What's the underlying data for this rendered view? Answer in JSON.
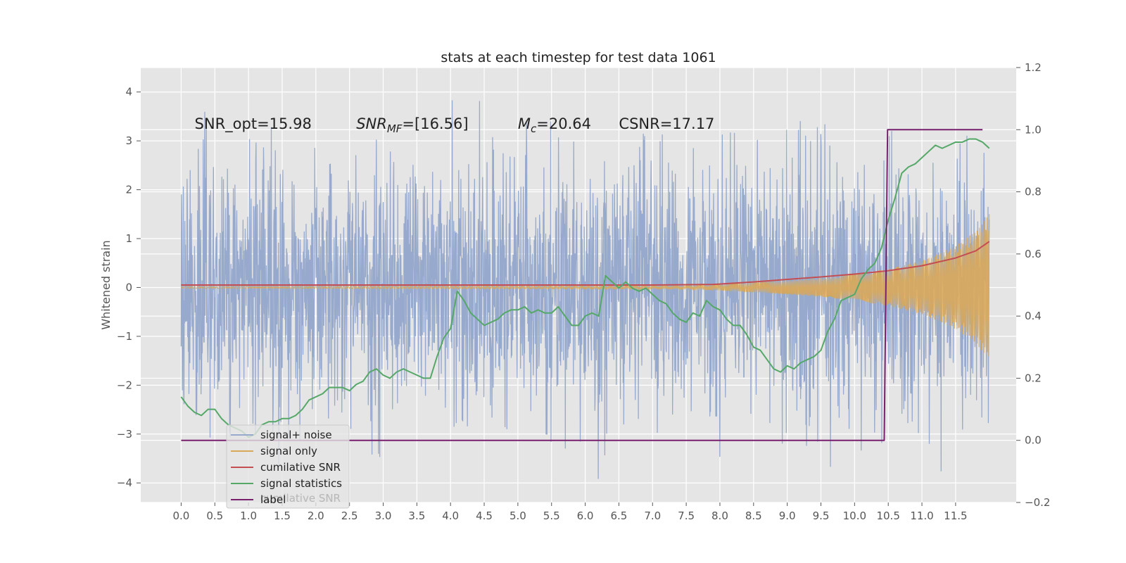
{
  "chart_data": {
    "type": "line",
    "title": "stats at each timestep for test data 1061",
    "xlabel": "",
    "ylabel": "Whitened strain",
    "ylabel_right": "",
    "xlim": [
      -0.6,
      12.4
    ],
    "ylim": [
      -4.4,
      4.5
    ],
    "ylim_right": [
      -0.2,
      1.2
    ],
    "x_ticks": [
      0.0,
      0.5,
      1.0,
      1.5,
      2.0,
      2.5,
      3.0,
      3.5,
      4.0,
      4.5,
      5.0,
      5.5,
      6.0,
      6.5,
      7.0,
      7.5,
      8.0,
      8.5,
      9.0,
      9.5,
      10.0,
      10.5,
      11.0,
      11.5
    ],
    "x_tick_labels": [
      "0.0",
      "0.5",
      "1.0",
      "1.5",
      "2.0",
      "2.5",
      "3.0",
      "3.5",
      "4.0",
      "4.5",
      "5.0",
      "5.5",
      "6.0",
      "6.5",
      "7.0",
      "7.5",
      "8.0",
      "8.5",
      "9.0",
      "9.5",
      "10.0",
      "10.5",
      "11.0",
      "11.5"
    ],
    "y_ticks": [
      -4,
      -3,
      -2,
      -1,
      0,
      1,
      2,
      3,
      4
    ],
    "y_tick_labels": [
      "−4",
      "−3",
      "−2",
      "−1",
      "0",
      "1",
      "2",
      "3",
      "4"
    ],
    "y_right_ticks": [
      -0.2,
      0.0,
      0.2,
      0.4,
      0.6,
      0.8,
      1.0,
      1.2
    ],
    "y_right_tick_labels": [
      "−0.2",
      "0.0",
      "0.2",
      "0.4",
      "0.6",
      "0.8",
      "1.0",
      "1.2"
    ],
    "grid": true,
    "legend_position": "lower-left",
    "annotations": [
      {
        "text": "SNR_opt=15.98",
        "x": 0.2,
        "y": 3.35
      },
      {
        "text": "SNR_MF=[16.56]",
        "main": "SNR",
        "sub": "MF",
        "rest": "=[16.56]",
        "x": 2.6,
        "y": 3.35
      },
      {
        "text": "M_c=20.64",
        "main": "M",
        "sub": "c",
        "rest": "=20.64",
        "x": 5.0,
        "y": 3.35
      },
      {
        "text": "CSNR=17.17",
        "x": 6.5,
        "y": 3.35
      }
    ],
    "legend_under_text": "cumilative SNR",
    "series": [
      {
        "name": "signal+ noise",
        "color": "#97a9cc",
        "axis": "left",
        "description": "noisy whitened strain, approx N(0,1) spread between about -4 and 4 over x from 0 to 12"
      },
      {
        "name": "signal only",
        "color": "#d9a95a",
        "axis": "left",
        "description": "chirp envelope, amplitude near 0 until ~8.0, growing to about 1.5 at x=12",
        "envelope": {
          "x": [
            0,
            7.5,
            8.0,
            8.5,
            9.0,
            9.5,
            10.0,
            10.5,
            11.0,
            11.5,
            11.8,
            12.0
          ],
          "amp": [
            0.02,
            0.03,
            0.06,
            0.1,
            0.14,
            0.19,
            0.27,
            0.38,
            0.55,
            0.85,
            1.15,
            1.5
          ]
        }
      },
      {
        "name": "cumilative SNR",
        "color": "#c44e52",
        "axis": "right",
        "x": [
          0,
          7.0,
          7.9,
          8.5,
          9.0,
          9.5,
          10.0,
          10.5,
          11.0,
          11.5,
          11.8,
          12.0
        ],
        "values": [
          0.5,
          0.5,
          0.502,
          0.51,
          0.518,
          0.526,
          0.535,
          0.546,
          0.562,
          0.587,
          0.61,
          0.64
        ]
      },
      {
        "name": "signal statistics",
        "color": "#55a868",
        "axis": "right",
        "x": [
          0.0,
          0.1,
          0.2,
          0.3,
          0.4,
          0.5,
          0.6,
          0.7,
          0.8,
          0.9,
          1.0,
          1.1,
          1.2,
          1.3,
          1.4,
          1.5,
          1.6,
          1.7,
          1.8,
          1.9,
          2.0,
          2.1,
          2.2,
          2.3,
          2.4,
          2.5,
          2.6,
          2.7,
          2.8,
          2.9,
          3.0,
          3.1,
          3.2,
          3.3,
          3.4,
          3.5,
          3.6,
          3.7,
          3.8,
          3.9,
          4.0,
          4.1,
          4.2,
          4.3,
          4.4,
          4.5,
          4.6,
          4.7,
          4.8,
          4.9,
          5.0,
          5.1,
          5.2,
          5.3,
          5.4,
          5.5,
          5.6,
          5.7,
          5.8,
          5.9,
          6.0,
          6.1,
          6.2,
          6.3,
          6.4,
          6.5,
          6.6,
          6.7,
          6.8,
          6.9,
          7.0,
          7.1,
          7.2,
          7.3,
          7.4,
          7.5,
          7.6,
          7.7,
          7.8,
          7.9,
          8.0,
          8.1,
          8.2,
          8.3,
          8.4,
          8.5,
          8.6,
          8.7,
          8.8,
          8.9,
          9.0,
          9.1,
          9.2,
          9.3,
          9.4,
          9.5,
          9.6,
          9.7,
          9.8,
          9.9,
          10.0,
          10.1,
          10.2,
          10.3,
          10.4,
          10.5,
          10.6,
          10.7,
          10.8,
          10.9,
          11.0,
          11.1,
          11.2,
          11.3,
          11.4,
          11.5,
          11.6,
          11.7,
          11.8,
          11.9,
          12.0
        ],
        "values": [
          0.14,
          0.11,
          0.09,
          0.08,
          0.1,
          0.1,
          0.07,
          0.05,
          0.04,
          0.03,
          0.01,
          0.02,
          0.05,
          0.06,
          0.06,
          0.07,
          0.07,
          0.08,
          0.1,
          0.13,
          0.14,
          0.15,
          0.17,
          0.17,
          0.17,
          0.16,
          0.18,
          0.19,
          0.22,
          0.23,
          0.21,
          0.2,
          0.22,
          0.23,
          0.22,
          0.21,
          0.2,
          0.2,
          0.27,
          0.33,
          0.36,
          0.48,
          0.45,
          0.41,
          0.39,
          0.37,
          0.38,
          0.39,
          0.41,
          0.42,
          0.42,
          0.43,
          0.41,
          0.42,
          0.41,
          0.41,
          0.43,
          0.4,
          0.37,
          0.37,
          0.4,
          0.41,
          0.4,
          0.53,
          0.51,
          0.49,
          0.51,
          0.49,
          0.48,
          0.49,
          0.47,
          0.45,
          0.44,
          0.41,
          0.39,
          0.38,
          0.41,
          0.4,
          0.45,
          0.43,
          0.42,
          0.39,
          0.37,
          0.37,
          0.34,
          0.3,
          0.29,
          0.26,
          0.23,
          0.22,
          0.24,
          0.23,
          0.25,
          0.26,
          0.27,
          0.29,
          0.35,
          0.39,
          0.45,
          0.46,
          0.47,
          0.52,
          0.55,
          0.57,
          0.62,
          0.71,
          0.78,
          0.86,
          0.88,
          0.89,
          0.91,
          0.93,
          0.95,
          0.94,
          0.95,
          0.96,
          0.96,
          0.97,
          0.97,
          0.96,
          0.94
        ]
      },
      {
        "name": "label",
        "color": "#78206e",
        "axis": "right",
        "x": [
          0,
          10.44,
          10.49,
          11.9
        ],
        "values": [
          0.0,
          0.0,
          1.0,
          1.0
        ]
      }
    ]
  }
}
